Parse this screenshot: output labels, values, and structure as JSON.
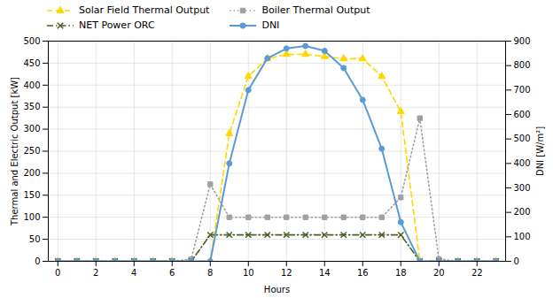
{
  "chart_data": {
    "type": "line",
    "xlabel": "Hours",
    "ylabel": "Thermal and Electric Output [kW]",
    "y2label": "DNI [W/m²]",
    "x": [
      0,
      1,
      2,
      3,
      4,
      5,
      6,
      7,
      8,
      9,
      10,
      11,
      12,
      13,
      14,
      15,
      16,
      17,
      18,
      19,
      20,
      21,
      22,
      23
    ],
    "xlim": [
      -0.5,
      23.5
    ],
    "xticks": [
      0,
      2,
      4,
      6,
      8,
      10,
      12,
      14,
      16,
      18,
      20,
      22
    ],
    "ylim": [
      0,
      500
    ],
    "yticks": [
      0,
      50,
      100,
      150,
      200,
      250,
      300,
      350,
      400,
      450,
      500
    ],
    "y2lim": [
      0,
      900
    ],
    "y2ticks": [
      0,
      100,
      200,
      300,
      400,
      500,
      600,
      700,
      800,
      900
    ],
    "grid": true,
    "legend": "top",
    "series": [
      {
        "name": "Solar Field Thermal Output",
        "color": "#FFD700",
        "marker": "triangle",
        "line_style": "dashed",
        "values": [
          0,
          0,
          0,
          0,
          0,
          0,
          0,
          0,
          0,
          290,
          420,
          460,
          470,
          470,
          465,
          460,
          460,
          420,
          340,
          0,
          0,
          0,
          0,
          0
        ]
      },
      {
        "name": "Boiler Thermal Output",
        "color": "#A0A0A0",
        "marker": "square",
        "line_style": "dotted",
        "values": [
          0,
          0,
          0,
          0,
          0,
          0,
          0,
          5,
          175,
          100,
          100,
          100,
          100,
          100,
          100,
          100,
          100,
          100,
          145,
          325,
          5,
          0,
          0,
          0
        ]
      },
      {
        "name": "NET Power ORC",
        "color": "#4B6028",
        "marker": "x",
        "line_style": "dashdot",
        "values": [
          0,
          0,
          0,
          0,
          0,
          0,
          0,
          0,
          60,
          60,
          60,
          60,
          60,
          60,
          60,
          60,
          60,
          60,
          60,
          0,
          0,
          0,
          0,
          0
        ]
      },
      {
        "name": "DNI",
        "color": "#5B9BD5",
        "marker": "circle",
        "line_style": "solid",
        "axis": "y2",
        "values": [
          0,
          0,
          0,
          0,
          0,
          0,
          0,
          0,
          0,
          400,
          700,
          830,
          870,
          880,
          860,
          790,
          660,
          460,
          160,
          0,
          0,
          0,
          0,
          0
        ]
      }
    ]
  }
}
